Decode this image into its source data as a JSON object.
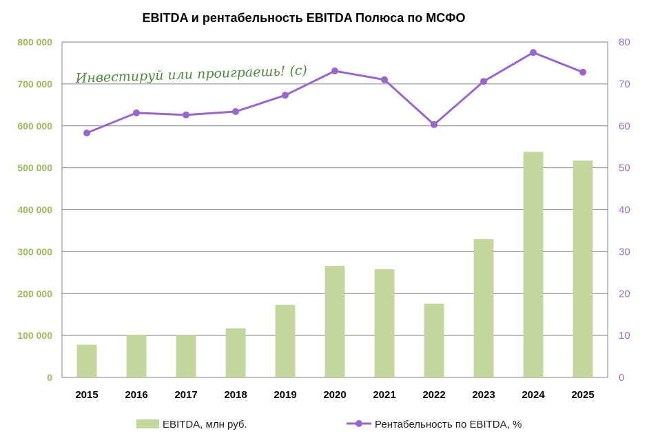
{
  "chart_data": {
    "type": "bar",
    "title": "EBITDA и рентабельность EBITDA Полюса по МСФО",
    "watermark": "Инвестируй или проиграешь! (с)",
    "categories": [
      "2015",
      "2016",
      "2017",
      "2018",
      "2019",
      "2020",
      "2021",
      "2022",
      "2023",
      "2024",
      "2025"
    ],
    "series": [
      {
        "name": "EBITDA, млн руб.",
        "type": "bar",
        "axis": "left",
        "color": "#c3d69b",
        "values": [
          78000,
          102000,
          100000,
          117000,
          173000,
          266000,
          258000,
          176000,
          330000,
          538000,
          517000
        ]
      },
      {
        "name": "Рентабельность по EBITDA, %",
        "type": "line",
        "axis": "right",
        "color": "#9966cc",
        "values": [
          58.3,
          63.1,
          62.6,
          63.4,
          67.3,
          73.1,
          71.0,
          60.3,
          70.6,
          77.5,
          72.8
        ]
      }
    ],
    "y_left": {
      "lim": [
        0,
        800000
      ],
      "ticks": [
        0,
        100000,
        200000,
        300000,
        400000,
        500000,
        600000,
        700000,
        800000
      ],
      "tick_labels": [
        "0",
        "100 000",
        "200 000",
        "300 000",
        "400 000",
        "500 000",
        "600 000",
        "700 000",
        "800 000"
      ]
    },
    "y_right": {
      "lim": [
        0,
        80
      ],
      "ticks": [
        0,
        10,
        20,
        30,
        40,
        50,
        60,
        70,
        80
      ],
      "tick_labels": [
        "0",
        "10",
        "20",
        "30",
        "40",
        "50",
        "60",
        "70",
        "80"
      ]
    },
    "grid": true,
    "legend": "bottom",
    "colors": {
      "left_axis_text": "#9bbb59",
      "right_axis_text": "#9b6fc7",
      "gridline": "#868686",
      "watermark": "#4f8a3f"
    }
  }
}
